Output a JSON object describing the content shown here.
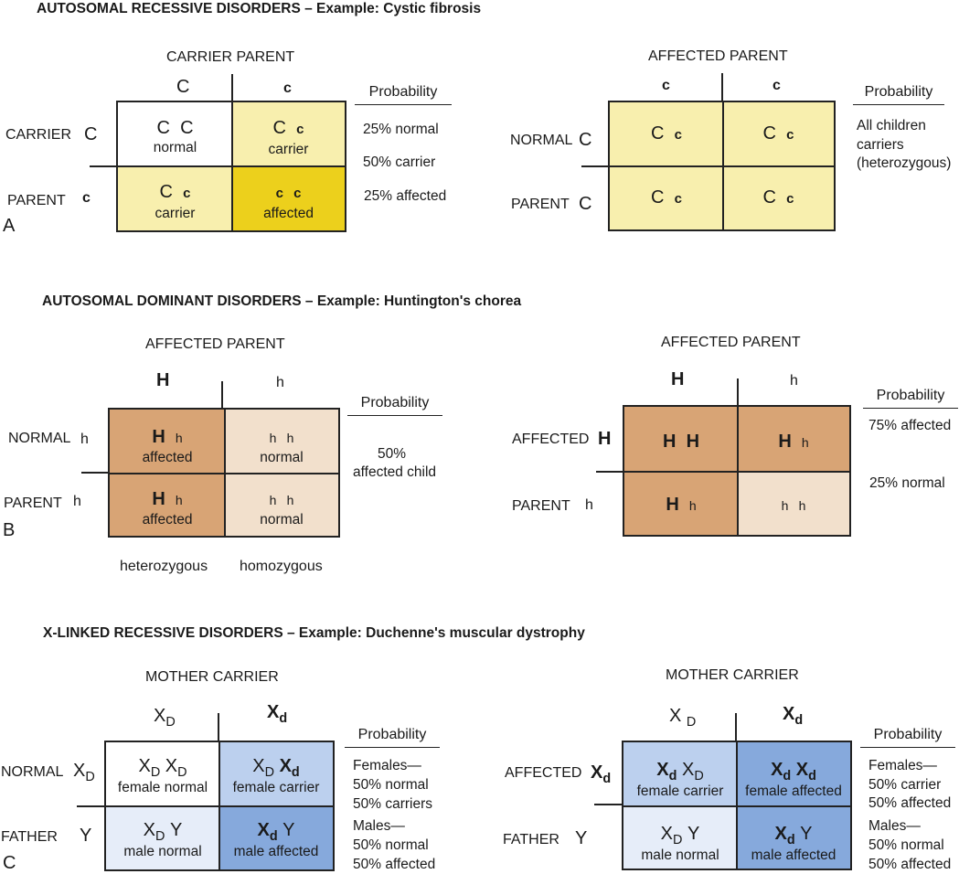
{
  "panelA": {
    "title": "AUTOSOMAL RECESSIVE DISORDERS – Example: Cystic fibrosis",
    "letter": "A",
    "left": {
      "top_parent": "CARRIER PARENT",
      "col1": "C",
      "col2": "c",
      "row1_label": "CARRIER",
      "row1_allele": "C",
      "row2_label": "PARENT",
      "row2_allele": "c",
      "cells": [
        {
          "a1": "C",
          "a2": "C",
          "desc": "normal",
          "color": "#ffffff"
        },
        {
          "a1": "C",
          "a2": "c",
          "desc": "carrier",
          "color": "#f8efae"
        },
        {
          "a1": "C",
          "a2": "c",
          "desc": "carrier",
          "color": "#f8efae"
        },
        {
          "a1": "c",
          "a2": "c",
          "desc": "affected",
          "color": "#ecd01c"
        }
      ],
      "prob_header": "Probability",
      "prob": [
        "25% normal",
        "50% carrier",
        "25% affected"
      ]
    },
    "right": {
      "top_parent": "AFFECTED  PARENT",
      "col1": "c",
      "col2": "c",
      "row1_label": "NORMAL",
      "row1_allele": "C",
      "row2_label": "PARENT",
      "row2_allele": "C",
      "cells": [
        {
          "a1": "C",
          "a2": "c",
          "color": "#f8efae"
        },
        {
          "a1": "C",
          "a2": "c",
          "color": "#f8efae"
        },
        {
          "a1": "C",
          "a2": "c",
          "color": "#f8efae"
        },
        {
          "a1": "C",
          "a2": "c",
          "color": "#f8efae"
        }
      ],
      "prob_header": "Probability",
      "prob": [
        "All children",
        "carriers",
        "(heterozygous)"
      ]
    }
  },
  "panelB": {
    "title": "AUTOSOMAL DOMINANT DISORDERS – Example: Huntington's chorea",
    "letter": "B",
    "left": {
      "top_parent": "AFFECTED PARENT",
      "col1": "H",
      "col2": "h",
      "row1_label": "NORMAL",
      "row1_allele": "h",
      "row2_label": "PARENT",
      "row2_allele": "h",
      "cells": [
        {
          "a1": "H",
          "a2": "h",
          "desc": "affected",
          "color": "#d8a475"
        },
        {
          "a1": "h",
          "a2": "h",
          "desc": "normal",
          "color": "#f2e0cc"
        },
        {
          "a1": "H",
          "a2": "h",
          "desc": "affected",
          "color": "#d8a475"
        },
        {
          "a1": "h",
          "a2": "h",
          "desc": "normal",
          "color": "#f2e0cc"
        }
      ],
      "prob_header": "Probability",
      "prob": [
        "50%",
        "affected child"
      ],
      "bottom_left": "heterozygous",
      "bottom_right": "homozygous"
    },
    "right": {
      "top_parent": "AFFECTED  PARENT",
      "col1": "H",
      "col2": "h",
      "row1_label": "AFFECTED",
      "row1_allele": "H",
      "row2_label": "PARENT",
      "row2_allele": "h",
      "cells": [
        {
          "a1": "H",
          "a2": "H",
          "color": "#d8a475"
        },
        {
          "a1": "H",
          "a2": "h",
          "color": "#d8a475"
        },
        {
          "a1": "H",
          "a2": "h",
          "color": "#d8a475"
        },
        {
          "a1": "h",
          "a2": "h",
          "color": "#f2e0cc"
        }
      ],
      "prob_header": "Probability",
      "prob1": "75% affected",
      "prob2": "25% normal"
    }
  },
  "panelC": {
    "title": "X-LINKED RECESSIVE DISORDERS – Example: Duchenne's muscular dystrophy",
    "letter": "C",
    "left": {
      "top_parent": "MOTHER CARRIER",
      "row1_label": "NORMAL",
      "row2_label": "FATHER",
      "cells": [
        {
          "desc": "female normal",
          "color": "#ffffff"
        },
        {
          "desc": "female carrier",
          "color": "#bcd0ee"
        },
        {
          "desc": "male normal",
          "color": "#e6edf9"
        },
        {
          "desc": "male affected",
          "color": "#86a9dc"
        }
      ],
      "prob_header": "Probability",
      "females": [
        "Females—",
        "50% normal",
        "50% carriers"
      ],
      "males": [
        "Males—",
        "50% normal",
        "50% affected"
      ]
    },
    "right": {
      "top_parent": "MOTHER CARRIER",
      "row1_label": "AFFECTED",
      "row2_label": "FATHER",
      "cells": [
        {
          "desc": "female carrier",
          "color": "#bcd0ee"
        },
        {
          "desc": "female affected",
          "color": "#86a9dc"
        },
        {
          "desc": "male normal",
          "color": "#e6edf9"
        },
        {
          "desc": "male affected",
          "color": "#86a9dc"
        }
      ],
      "prob_header": "Probability",
      "females": [
        "Females—",
        "50% carrier",
        "50% affected"
      ],
      "males": [
        "Males—",
        "50% normal",
        "50% affected"
      ]
    },
    "allele": {
      "X": "X",
      "D": "D",
      "d": "d",
      "Y": "Y"
    }
  }
}
